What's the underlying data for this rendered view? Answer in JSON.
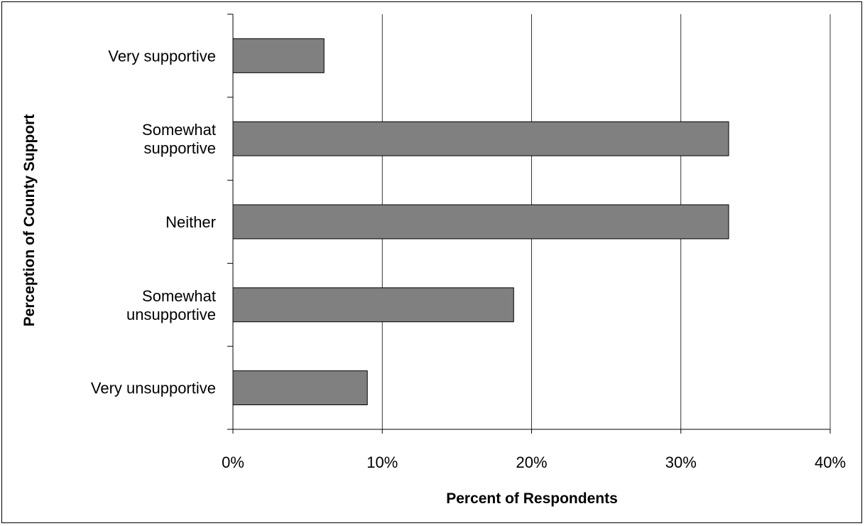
{
  "chart_data": {
    "type": "bar",
    "orientation": "horizontal",
    "categories": [
      [
        "Very supportive"
      ],
      [
        "Somewhat",
        "supportive"
      ],
      [
        "Neither"
      ],
      [
        "Somewhat",
        "unsupportive"
      ],
      [
        "Very unsupportive"
      ]
    ],
    "values": [
      6.1,
      33.2,
      33.2,
      18.8,
      9.0
    ],
    "xlabel": "Percent of Respondents",
    "ylabel": "Perception of County Support",
    "xlim": [
      0,
      40
    ],
    "xticks": [
      0,
      10,
      20,
      30,
      40
    ],
    "xtick_labels": [
      "0%",
      "10%",
      "20%",
      "30%",
      "40%"
    ],
    "grid": "vertical",
    "legend": "none",
    "colors": {
      "bar_fill": "#808080",
      "bar_stroke": "#000000",
      "grid": "#000000"
    }
  }
}
